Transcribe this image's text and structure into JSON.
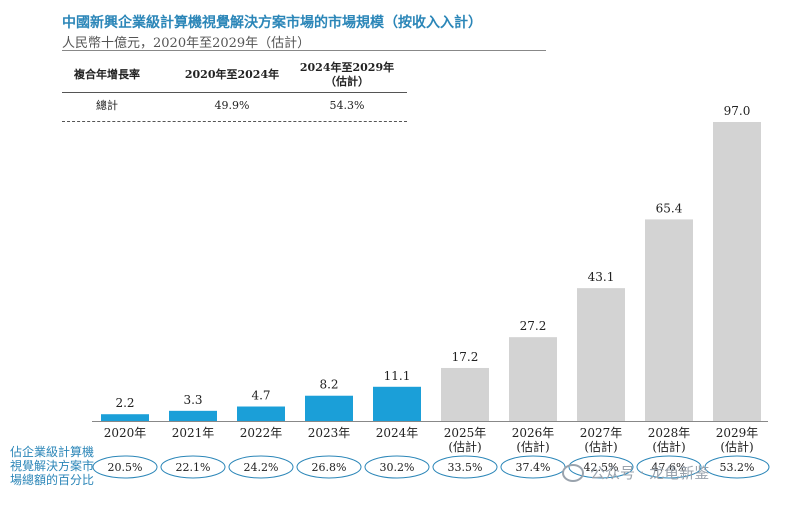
{
  "header": {
    "title": "中國新興企業級計算機視覺解決方案市場的市場規模（按收入入計）",
    "subtitle": "人民幣十億元，2020年至2029年（估計）"
  },
  "cagr_table": {
    "col0": "複合年增長率",
    "col1": "2020年至2024年",
    "col2_line1": "2024年至2029年",
    "col2_line2": "（估計）",
    "row_label": "總計",
    "row_val1": "49.9%",
    "row_val2": "54.3%"
  },
  "share_label": "佔企業級計算機視覺解決方案市場總額的百分比",
  "watermark": "公众号 · 龙龟新鉴",
  "colors": {
    "actual": "#1b9fd8",
    "estimated": "#d3d3d3",
    "accent": "#2b86b8"
  },
  "chart_data": {
    "type": "bar",
    "title": "中國新興企業級計算機視覺解決方案市場的市場規模（按收入入計）",
    "ylabel": "人民幣十億元",
    "ylim": [
      0,
      100
    ],
    "categories": [
      [
        "2020年"
      ],
      [
        "2021年"
      ],
      [
        "2022年"
      ],
      [
        "2023年"
      ],
      [
        "2024年"
      ],
      [
        "2025年",
        "(估計)"
      ],
      [
        "2026年",
        "(估計)"
      ],
      [
        "2027年",
        "(估計)"
      ],
      [
        "2028年",
        "(估計)"
      ],
      [
        "2029年",
        "(估計)"
      ]
    ],
    "values": [
      2.2,
      3.3,
      4.7,
      8.2,
      11.1,
      17.2,
      27.2,
      43.1,
      65.4,
      97.0
    ],
    "value_labels": [
      "2.2",
      "3.3",
      "4.7",
      "8.2",
      "11.1",
      "17.2",
      "27.2",
      "43.1",
      "65.4",
      "97.0"
    ],
    "estimated": [
      false,
      false,
      false,
      false,
      false,
      true,
      true,
      true,
      true,
      true
    ],
    "share_percentages": [
      "20.5%",
      "22.1%",
      "24.2%",
      "26.8%",
      "30.2%",
      "33.5%",
      "37.4%",
      "42.5%",
      "47.6%",
      "53.2%"
    ]
  }
}
